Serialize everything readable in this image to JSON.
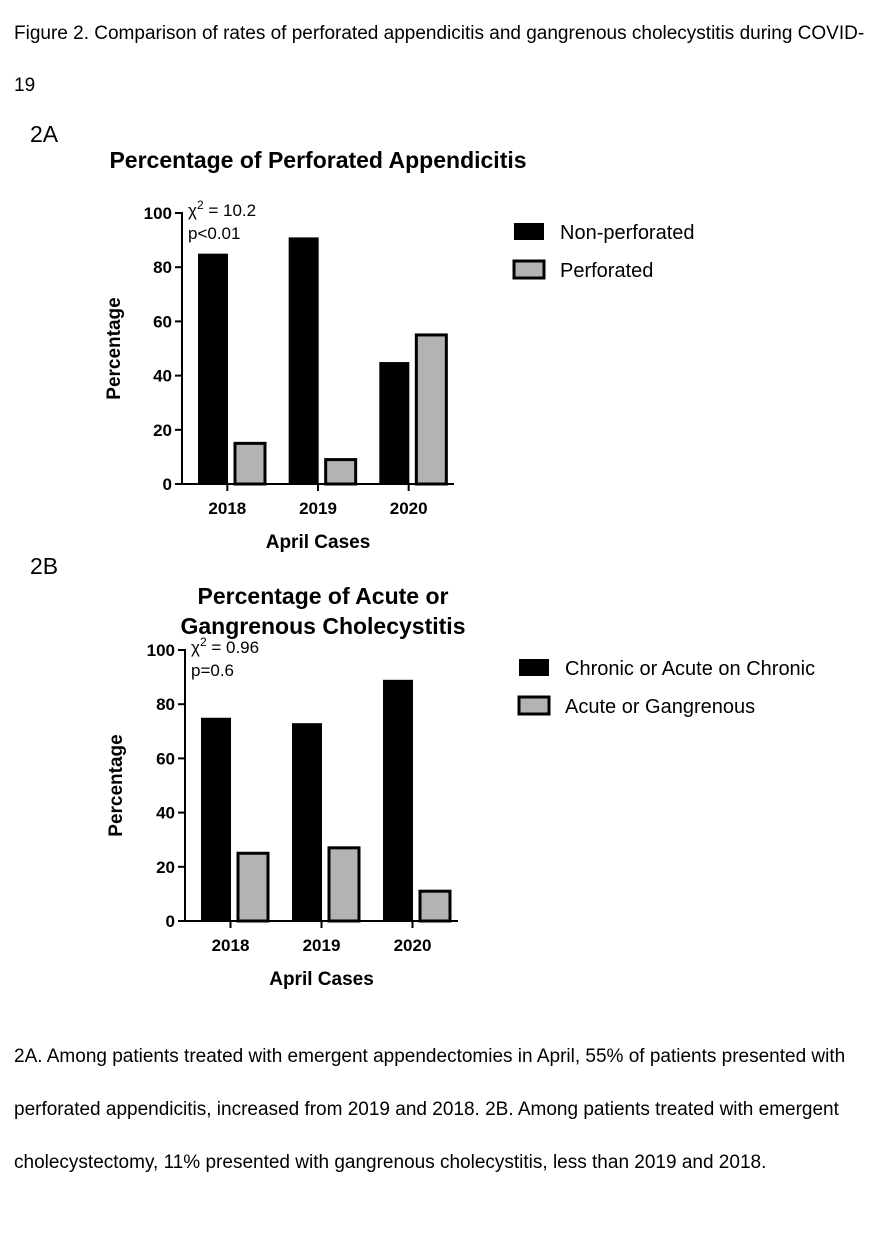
{
  "figure_title": "Figure 2. Comparison of rates of perforated appendicitis and gangrenous cholecystitis during COVID-19",
  "caption": "2A. Among patients treated with emergent appendectomies in April, 55% of patients presented with perforated appendicitis, increased from 2019 and 2018. 2B. Among patients treated with emergent cholecystectomy, 11% presented with gangrenous cholecystitis, less than 2019 and 2018.",
  "colors": {
    "series_1": "#000000",
    "series_2": "#b3b3b3",
    "bar_stroke": "#000000"
  },
  "chart_data": [
    {
      "panel_label": "2A",
      "type": "bar",
      "title_lines": [
        "Percentage of Perforated Appendicitis"
      ],
      "xlabel": "April Cases",
      "ylabel": "Percentage",
      "ylim": [
        0,
        100
      ],
      "yticks": [
        0,
        20,
        40,
        60,
        80,
        100
      ],
      "categories": [
        "2018",
        "2019",
        "2020"
      ],
      "series": [
        {
          "name": "Non-perforated",
          "values": [
            85,
            91,
            45
          ]
        },
        {
          "name": "Perforated",
          "values": [
            15,
            9,
            55
          ]
        }
      ],
      "annotation": {
        "stat_symbol": "χ",
        "stat_power": "2",
        "stat_value": " = 10.2",
        "p_text": "p<0.01"
      },
      "legend_position": "right",
      "grid": false
    },
    {
      "panel_label": "2B",
      "type": "bar",
      "title_lines": [
        "Percentage of Acute or",
        "Gangrenous Cholecystitis"
      ],
      "xlabel": "April Cases",
      "ylabel": "Percentage",
      "ylim": [
        0,
        100
      ],
      "yticks": [
        0,
        20,
        40,
        60,
        80,
        100
      ],
      "categories": [
        "2018",
        "2019",
        "2020"
      ],
      "series": [
        {
          "name": "Chronic or Acute on Chronic",
          "values": [
            75,
            73,
            89
          ]
        },
        {
          "name": "Acute or Gangrenous",
          "values": [
            25,
            27,
            11
          ]
        }
      ],
      "annotation": {
        "stat_symbol": "χ",
        "stat_power": "2",
        "stat_value": " = 0.96",
        "p_text": "p=0.6"
      },
      "legend_position": "right",
      "grid": false
    }
  ]
}
